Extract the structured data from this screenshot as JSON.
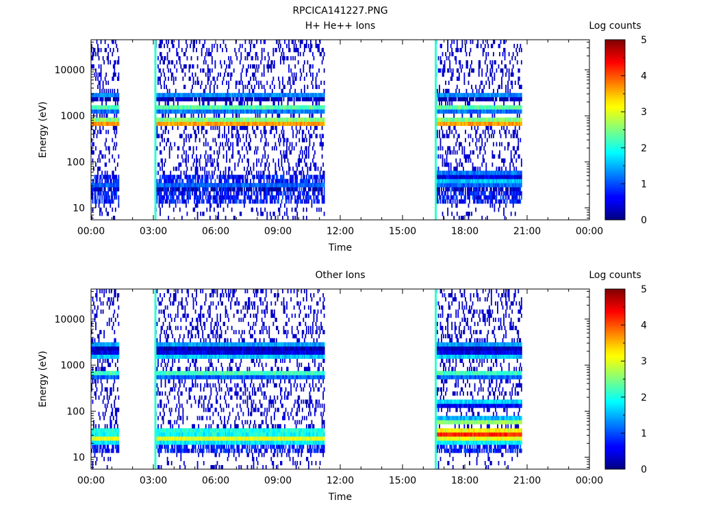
{
  "figure_title": "RPCICA141227.PNG",
  "chart_data": [
    {
      "type": "heatmap",
      "title": "H+ He++ Ions",
      "xlabel": "Time",
      "ylabel": "Energy (eV)",
      "y_scale": "log",
      "ylim": [
        5.5,
        45000
      ],
      "y_ticks": [
        10,
        100,
        1000,
        10000
      ],
      "y_tick_labels": [
        "10",
        "100",
        "1000",
        "10000"
      ],
      "xlim_hours": [
        0,
        24
      ],
      "x_ticks_hours": [
        0,
        3,
        6,
        9,
        12,
        15,
        18,
        21,
        24
      ],
      "x_tick_labels": [
        "00:00",
        "03:00",
        "06:00",
        "09:00",
        "12:00",
        "15:00",
        "18:00",
        "21:00",
        "00:00"
      ],
      "colorbar": {
        "label": "Log counts",
        "range": [
          0,
          5
        ],
        "ticks": [
          "0",
          "1",
          "2",
          "3",
          "4",
          "5"
        ]
      },
      "data_intervals_hours": [
        [
          0.0,
          1.35
        ],
        [
          3.05,
          11.25
        ],
        [
          16.55,
          20.75
        ]
      ],
      "vertical_lines_hours": [
        3.1,
        16.6
      ],
      "noise_floor_ev": 55,
      "bands": [
        {
          "energy_ev": 700,
          "log_counts": 3.6
        },
        {
          "energy_ev": 1500,
          "log_counts": 2.3
        },
        {
          "energy_ev": 2700,
          "log_counts": 1.3
        },
        {
          "energy_ev": 30,
          "log_counts": 1.1
        },
        {
          "energy_ev": 40,
          "log_counts": 1.6,
          "interval": 3
        },
        {
          "energy_ev": 55,
          "log_counts": 1.2,
          "interval": 3
        }
      ]
    },
    {
      "type": "heatmap",
      "title": "Other Ions",
      "xlabel": "Time",
      "ylabel": "Energy (eV)",
      "y_scale": "log",
      "ylim": [
        5.5,
        45000
      ],
      "y_ticks": [
        10,
        100,
        1000,
        10000
      ],
      "y_tick_labels": [
        "10",
        "100",
        "1000",
        "10000"
      ],
      "xlim_hours": [
        0,
        24
      ],
      "x_ticks_hours": [
        0,
        3,
        6,
        9,
        12,
        15,
        18,
        21,
        24
      ],
      "x_tick_labels": [
        "00:00",
        "03:00",
        "06:00",
        "09:00",
        "12:00",
        "15:00",
        "18:00",
        "21:00",
        "00:00"
      ],
      "colorbar": {
        "label": "Log counts",
        "range": [
          0,
          5
        ],
        "ticks": [
          "0",
          "1",
          "2",
          "3",
          "4",
          "5"
        ]
      },
      "data_intervals_hours": [
        [
          0.0,
          1.35
        ],
        [
          3.05,
          11.25
        ],
        [
          16.55,
          20.75
        ]
      ],
      "vertical_lines_hours": [
        3.1,
        16.6
      ],
      "noise_floor_ev": 25,
      "bands": [
        {
          "energy_ev": 28,
          "log_counts": 3.0
        },
        {
          "energy_ev": 22,
          "log_counts": 1.8
        },
        {
          "energy_ev": 38,
          "log_counts": 2.0
        },
        {
          "energy_ev": 650,
          "log_counts": 2.2
        },
        {
          "energy_ev": 1550,
          "log_counts": 1.6
        },
        {
          "energy_ev": 2800,
          "log_counts": 1.4
        },
        {
          "energy_ev": 32,
          "log_counts": 4.2,
          "interval": 3
        },
        {
          "energy_ev": 60,
          "log_counts": 2.6,
          "interval": 3
        },
        {
          "energy_ev": 150,
          "log_counts": 1.7,
          "interval": 3
        }
      ]
    }
  ]
}
